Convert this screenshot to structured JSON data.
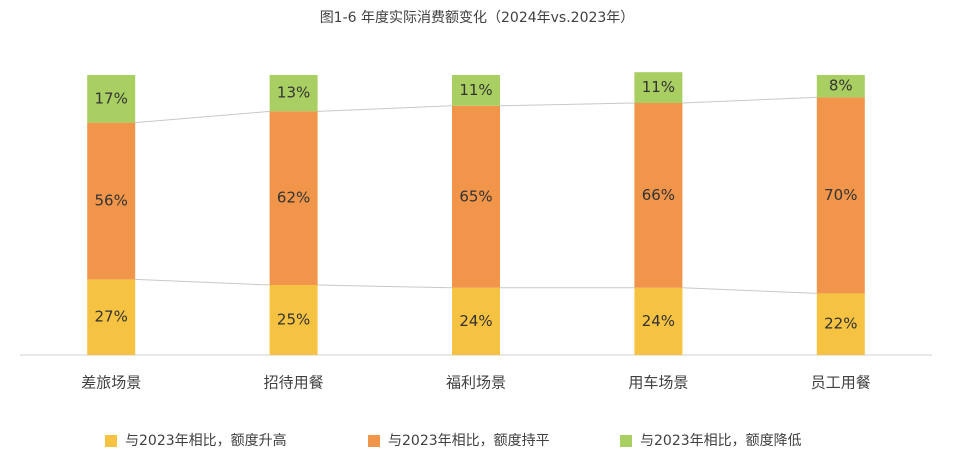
{
  "chart_data": {
    "type": "stacked_bar_100",
    "title": "图1-6 年度实际消费额变化（2024年vs.2023年）",
    "categories": [
      "差旅场景",
      "招待用餐",
      "福利场景",
      "用车场景",
      "员工用餐"
    ],
    "ylim": [
      0,
      100
    ],
    "series": [
      {
        "name": "与2023年相比，额度升高",
        "color": "#f5c242",
        "values": [
          27,
          25,
          24,
          24,
          22
        ],
        "value_labels": [
          "27%",
          "25%",
          "24%",
          "24%",
          "22%"
        ]
      },
      {
        "name": "与2023年相比，额度持平",
        "color": "#f0954a",
        "values": [
          56,
          62,
          65,
          66,
          70
        ],
        "value_labels": [
          "56%",
          "62%",
          "65%",
          "66%",
          "70%"
        ]
      },
      {
        "name": "与2023年相比，额度降低",
        "color": "#a9cf62",
        "values": [
          17,
          13,
          11,
          11,
          8
        ],
        "value_labels": [
          "17%",
          "13%",
          "11%",
          "11%",
          "8%"
        ]
      }
    ]
  }
}
